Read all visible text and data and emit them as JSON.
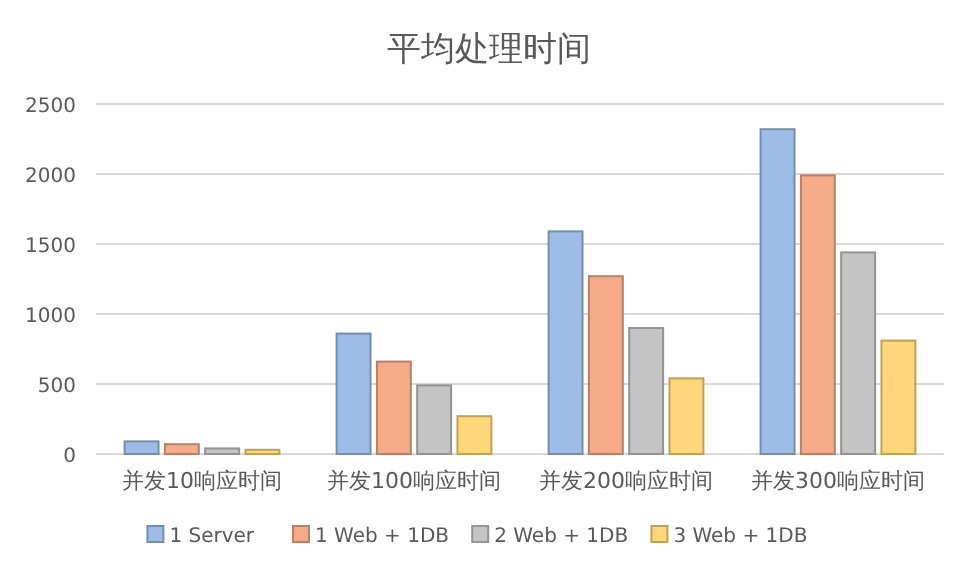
{
  "chart_data": {
    "type": "bar",
    "title": "平均处理时间",
    "categories": [
      "并发10响应时间",
      "并发100响应时间",
      "并发200响应时间",
      "并发300响应时间"
    ],
    "series": [
      {
        "name": "1 Server",
        "color": "#9dbde6",
        "values": [
          90,
          860,
          1590,
          2320
        ]
      },
      {
        "name": "1 Web + 1DB",
        "color": "#f5aa88",
        "values": [
          70,
          660,
          1270,
          1990
        ]
      },
      {
        "name": "2 Web + 1DB",
        "color": "#c4c4c4",
        "values": [
          40,
          490,
          900,
          1440
        ]
      },
      {
        "name": "3 Web + 1DB",
        "color": "#ffd77a",
        "values": [
          30,
          270,
          540,
          810
        ]
      }
    ],
    "ylim": [
      0,
      2500
    ],
    "yticks": [
      0,
      500,
      1000,
      1500,
      2000,
      2500
    ],
    "grid": "y",
    "legend": "bottom"
  }
}
